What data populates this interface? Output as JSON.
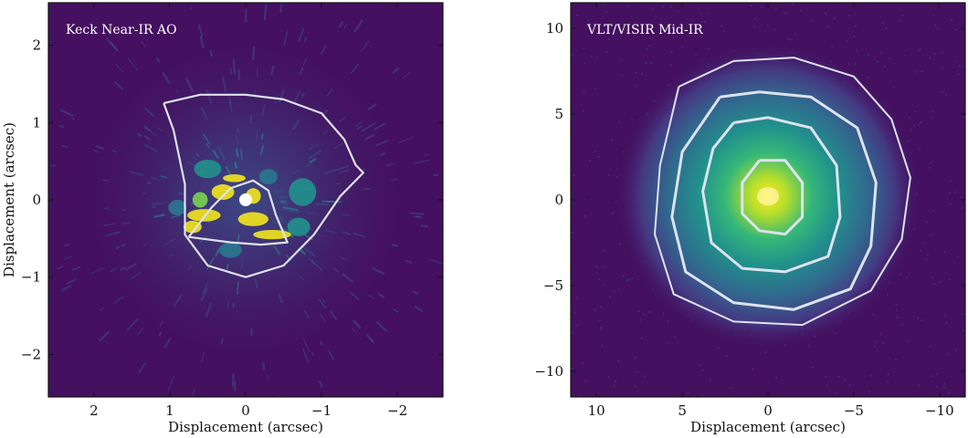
{
  "figure": "Two-panel comparison of near-IR and mid-IR images with overlaid model outlines",
  "colors": {
    "background": "#44105f",
    "outline": "#dde3ee",
    "bright": "#f3e51d",
    "mid": "#21918c",
    "dim": "#3b528b"
  },
  "chart_data": [
    {
      "type": "heatmap",
      "title": "Keck Near-IR AO",
      "xlabel": "Displacement (arcsec)",
      "ylabel": "Displacement (arcsec)",
      "xlim": [
        2.6,
        -2.6
      ],
      "ylim": [
        -2.55,
        2.55
      ],
      "xticks": [
        2,
        1,
        0,
        -1,
        -2
      ],
      "xtick_labels": [
        "2",
        "1",
        "0",
        "−1",
        "−2"
      ],
      "yticks": [
        -2,
        -1,
        0,
        1,
        2
      ],
      "ytick_labels": [
        "−2",
        "−1",
        "0",
        "1",
        "2"
      ],
      "overlay_outline_points": [
        [
          1.08,
          1.25
        ],
        [
          0.6,
          1.36
        ],
        [
          0.0,
          1.36
        ],
        [
          -0.5,
          1.3
        ],
        [
          -1.0,
          1.12
        ],
        [
          -1.3,
          0.78
        ],
        [
          -1.45,
          0.45
        ],
        [
          -1.55,
          0.35
        ],
        [
          -1.25,
          0.05
        ],
        [
          -0.9,
          -0.45
        ],
        [
          -0.5,
          -0.85
        ],
        [
          0.0,
          -1.0
        ],
        [
          0.5,
          -0.85
        ],
        [
          0.8,
          -0.45
        ],
        [
          0.8,
          0.2
        ],
        [
          0.95,
          0.9
        ],
        [
          1.08,
          1.25
        ]
      ],
      "overlay_inner_loop": [
        [
          0.75,
          -0.48
        ],
        [
          0.45,
          -0.1
        ],
        [
          0.2,
          0.15
        ],
        [
          -0.1,
          0.25
        ],
        [
          -0.3,
          0.12
        ],
        [
          -0.4,
          -0.2
        ],
        [
          -0.55,
          -0.55
        ],
        [
          -0.2,
          -0.58
        ],
        [
          0.2,
          -0.55
        ],
        [
          0.75,
          -0.48
        ]
      ],
      "central_source": [
        0.0,
        0.0
      ]
    },
    {
      "type": "heatmap",
      "title": "VLT/VISIR Mid-IR",
      "xlabel": "Displacement (arcsec)",
      "ylabel": "",
      "xlim": [
        11.5,
        -11.5
      ],
      "ylim": [
        -11.5,
        11.5
      ],
      "xticks": [
        10,
        5,
        0,
        -5,
        -10
      ],
      "xtick_labels": [
        "10",
        "5",
        "0",
        "−5",
        "−10"
      ],
      "yticks": [
        -10,
        -5,
        0,
        5,
        10
      ],
      "ytick_labels": [
        "−10",
        "−5",
        "0",
        "5",
        "10"
      ],
      "overlay_outer_loop": [
        [
          5.2,
          6.6
        ],
        [
          2.0,
          8.1
        ],
        [
          -1.5,
          8.3
        ],
        [
          -5.0,
          7.2
        ],
        [
          -7.2,
          4.7
        ],
        [
          -8.3,
          1.3
        ],
        [
          -7.8,
          -2.3
        ],
        [
          -6.0,
          -5.3
        ],
        [
          -2.0,
          -7.3
        ],
        [
          2.0,
          -7.1
        ],
        [
          5.5,
          -5.5
        ],
        [
          6.6,
          -2.0
        ],
        [
          6.3,
          2.0
        ],
        [
          5.2,
          6.6
        ]
      ],
      "overlay_middle_loop": [
        [
          2.8,
          6.0
        ],
        [
          0.5,
          6.3
        ],
        [
          -2.5,
          6.0
        ],
        [
          -5.2,
          4.2
        ],
        [
          -6.3,
          1.0
        ],
        [
          -6.0,
          -2.7
        ],
        [
          -4.8,
          -5.2
        ],
        [
          -1.5,
          -6.4
        ],
        [
          2.0,
          -6.0
        ],
        [
          4.8,
          -4.2
        ],
        [
          5.6,
          -1.0
        ],
        [
          5.0,
          2.8
        ],
        [
          2.8,
          6.0
        ]
      ],
      "overlay_inner_loop": [
        [
          2.0,
          4.5
        ],
        [
          0.0,
          4.8
        ],
        [
          -2.5,
          4.2
        ],
        [
          -4.0,
          2.0
        ],
        [
          -4.2,
          -1.0
        ],
        [
          -3.5,
          -3.3
        ],
        [
          -1.0,
          -4.2
        ],
        [
          1.5,
          -4.0
        ],
        [
          3.3,
          -2.5
        ],
        [
          3.8,
          0.5
        ],
        [
          3.2,
          3.0
        ],
        [
          2.0,
          4.5
        ]
      ],
      "overlay_core_loop": [
        [
          0.5,
          2.3
        ],
        [
          -1.0,
          2.3
        ],
        [
          -2.0,
          1.0
        ],
        [
          -2.0,
          -1.0
        ],
        [
          -1.0,
          -2.0
        ],
        [
          0.5,
          -1.8
        ],
        [
          1.5,
          -0.8
        ],
        [
          1.5,
          1.0
        ],
        [
          0.5,
          2.3
        ]
      ],
      "peak": [
        0.0,
        0.2
      ]
    }
  ]
}
